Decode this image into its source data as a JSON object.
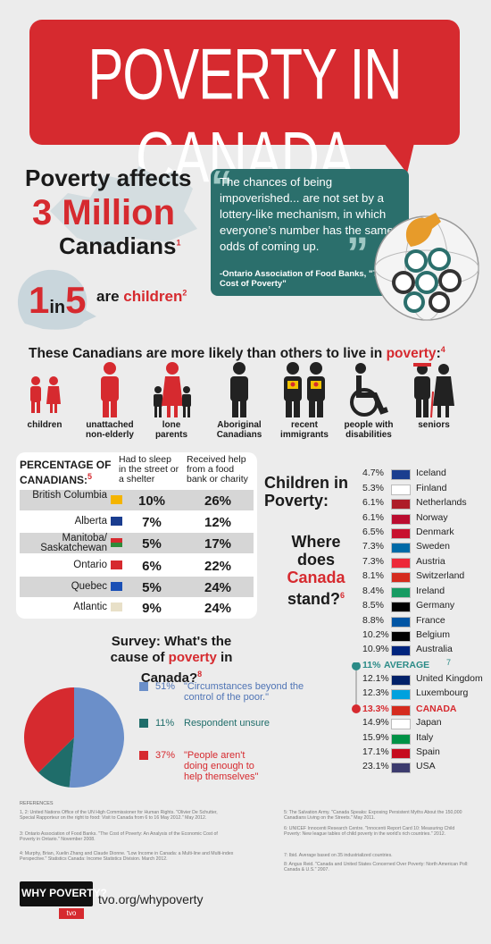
{
  "banner": {
    "title": "POVERTY IN CANADA"
  },
  "headline": {
    "line1": "Poverty affects",
    "line2": "3 Million",
    "line3": "Canadians",
    "line3_note": "1",
    "one_in": "1",
    "in_word": "in",
    "five": "5",
    "are": "are",
    "children": "children",
    "children_note": "2"
  },
  "quote": {
    "text": "The chances of being impoverished... are not set by a lottery-like mechanism, in which everyone’s number has the same odds of coming up.",
    "source": "-Ontario Association of Food Banks, \"The Cost of Poverty\""
  },
  "likely": {
    "prefix": "These Canadians are more likely than others to live in ",
    "red": "poverty",
    "suffix": ":",
    "note": "4"
  },
  "groups": [
    {
      "label": "children"
    },
    {
      "label": "unattached non-elderly"
    },
    {
      "label": "lone parents"
    },
    {
      "label": "Aboriginal Canadians"
    },
    {
      "label": "recent immigrants"
    },
    {
      "label": "people with disabilities"
    },
    {
      "label": "seniors"
    }
  ],
  "table": {
    "header0": "PERCENTAGE OF CANADIANS:",
    "header0_note": "5",
    "header1": "Had to sleep in the street or a shelter",
    "header2": "Received help from a food bank or charity",
    "rows": [
      {
        "province": "British Columbia",
        "street": "10%",
        "food": "26%"
      },
      {
        "province": "Alberta",
        "street": "7%",
        "food": "12%"
      },
      {
        "province": "Manitoba/ Saskatchewan",
        "street": "5%",
        "food": "17%"
      },
      {
        "province": "Ontario",
        "street": "6%",
        "food": "22%"
      },
      {
        "province": "Quebec",
        "street": "5%",
        "food": "24%"
      },
      {
        "province": "Atlantic",
        "street": "9%",
        "food": "24%"
      }
    ]
  },
  "children_poverty": {
    "title1": "Children in",
    "title2": "Poverty:",
    "where1": "Where",
    "where2": "does",
    "where3": "Canada",
    "where4": "stand?",
    "where_note": "6",
    "countries": [
      {
        "pct": "4.7%",
        "name": "Iceland",
        "flag": "#1b3e8f"
      },
      {
        "pct": "5.3%",
        "name": "Finland",
        "flag": "#ffffff"
      },
      {
        "pct": "6.1%",
        "name": "Netherlands",
        "flag": "#ae1c28"
      },
      {
        "pct": "6.1%",
        "name": "Norway",
        "flag": "#ba0c2f"
      },
      {
        "pct": "6.5%",
        "name": "Denmark",
        "flag": "#c8102e"
      },
      {
        "pct": "7.3%",
        "name": "Sweden",
        "flag": "#006aa7"
      },
      {
        "pct": "7.3%",
        "name": "Austria",
        "flag": "#ed2939"
      },
      {
        "pct": "8.1%",
        "name": "Switzerland",
        "flag": "#d52b1e"
      },
      {
        "pct": "8.4%",
        "name": "Ireland",
        "flag": "#169b62"
      },
      {
        "pct": "8.5%",
        "name": "Germany",
        "flag": "#000000"
      },
      {
        "pct": "8.8%",
        "name": "France",
        "flag": "#0055a4"
      },
      {
        "pct": "10.2%",
        "name": "Belgium",
        "flag": "#000000"
      },
      {
        "pct": "10.9%",
        "name": "Australia",
        "flag": "#00247d"
      },
      {
        "pct": "11%",
        "name": "AVERAGE",
        "note": "7"
      },
      {
        "pct": "12.1%",
        "name": "United Kingdom",
        "flag": "#012169"
      },
      {
        "pct": "12.3%",
        "name": "Luxembourg",
        "flag": "#00a1de"
      },
      {
        "pct": "13.3%",
        "name": "CANADA",
        "flag": "#d52b1e"
      },
      {
        "pct": "14.9%",
        "name": "Japan",
        "flag": "#ffffff"
      },
      {
        "pct": "15.9%",
        "name": "Italy",
        "flag": "#009246"
      },
      {
        "pct": "17.1%",
        "name": "Spain",
        "flag": "#c60b1e"
      },
      {
        "pct": "23.1%",
        "name": "USA",
        "flag": "#3c3b6e"
      }
    ]
  },
  "survey": {
    "title1": "Survey: What's the",
    "title2a": "cause of ",
    "title2b": "poverty",
    "title2c": " in Canada?",
    "note": "8",
    "items": [
      {
        "pct": "51%",
        "text": "\"Circumstances beyond the control of the poor.\"",
        "value": 51,
        "color": "#6b8fc9"
      },
      {
        "pct": "11%",
        "text": "Respondent unsure",
        "value": 11,
        "color": "#1f6d6a"
      },
      {
        "pct": "37%",
        "text": "\"People aren't doing enough to help themselves\"",
        "value": 37,
        "color": "#d62a2f"
      }
    ]
  },
  "references": {
    "heading": "REFERENCES",
    "left": [
      "1, 2: United Nations Office of the UN High Commissioner for Human Rights. \"Olivier De Schutter, Special Rapporteur on the right to food: Visit to Canada from 6 to 16 May 2012.\" May 2012.",
      "3: Ontario Association of Food Banks. \"The Cost of Poverty: An Analysis of the Economic Cost of Poverty in Ontario.\" November 2008.",
      "4: Murphy, Brian, Xuelin Zhang and Claude Dionne. \"Low Income in Canada: a Multi-line and Multi-index Perspective.\" Statistics Canada: Income Statistics Division. March 2012."
    ],
    "right": [
      "5: The Salvation Army. \"Canada Speaks: Exposing Persistent Myths About the 150,000 Canadians Living on the Streets.\" May 2011.",
      "6: UNICEF Innocenti Research Centre. \"Innocenti Report Card 10: Measuring Child Poverty: New league tables of child poverty in the world's rich countries.\" 2012.",
      "7: Ibid. Average based on 35 industrialized countries.",
      "8: Angus Reid. \"Canada and United States Concerned Over Poverty: North American Poll: Canada & U.S.\" 2007."
    ]
  },
  "footer": {
    "brand": "WHY POVERTY?",
    "tvo": "tvo",
    "url": "tvo.org/whypoverty"
  }
}
